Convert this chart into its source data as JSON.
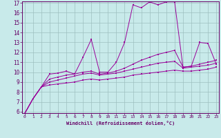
{
  "xlabel": "Windchill (Refroidissement éolien,°C)",
  "x_values": [
    0,
    1,
    2,
    3,
    4,
    5,
    6,
    7,
    8,
    9,
    10,
    11,
    12,
    13,
    14,
    15,
    16,
    17,
    18,
    19,
    20,
    21,
    22,
    23
  ],
  "line1": [
    5.8,
    7.3,
    8.5,
    9.8,
    9.9,
    10.1,
    9.8,
    11.5,
    13.3,
    10.0,
    10.0,
    11.0,
    13.0,
    16.8,
    16.5,
    17.1,
    16.8,
    17.1,
    17.1,
    10.5,
    10.6,
    13.0,
    12.9,
    10.8
  ],
  "line2": [
    5.8,
    7.3,
    8.5,
    9.3,
    9.5,
    9.7,
    9.8,
    10.0,
    10.1,
    9.8,
    9.9,
    10.1,
    10.4,
    10.8,
    11.2,
    11.5,
    11.8,
    12.0,
    12.2,
    10.5,
    10.6,
    10.8,
    11.0,
    11.2
  ],
  "line3": [
    5.8,
    7.3,
    8.5,
    9.0,
    9.2,
    9.4,
    9.6,
    9.8,
    9.9,
    9.7,
    9.8,
    9.9,
    10.1,
    10.3,
    10.5,
    10.7,
    10.9,
    11.0,
    11.1,
    10.4,
    10.5,
    10.6,
    10.7,
    10.9
  ],
  "line4": [
    5.8,
    7.3,
    8.5,
    8.7,
    8.8,
    8.9,
    9.0,
    9.2,
    9.3,
    9.2,
    9.3,
    9.4,
    9.5,
    9.7,
    9.8,
    9.9,
    10.0,
    10.1,
    10.2,
    10.1,
    10.1,
    10.2,
    10.3,
    10.5
  ],
  "ylim_min": 6,
  "ylim_max": 17,
  "xlim_min": 0,
  "xlim_max": 23,
  "line_color": "#990099",
  "bg_color": "#c8eaea",
  "grid_color": "#9dbfbf",
  "font_color": "#660066",
  "spine_color": "#660066"
}
